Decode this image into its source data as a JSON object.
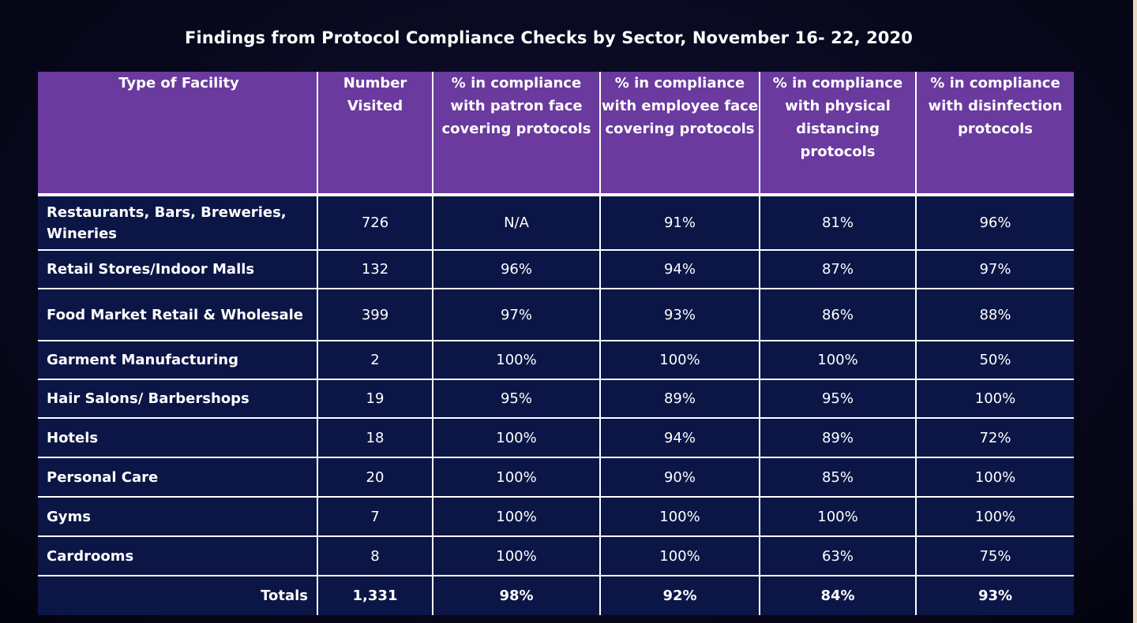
{
  "title": "Findings from Protocol Compliance Checks by Sector,  November 16- 22, 2020",
  "table": {
    "headers": [
      "Type of Facility",
      "Number Visited",
      "% in compliance with patron face covering protocols",
      "% in compliance with employee face covering protocols",
      "% in compliance with physical distancing protocols",
      "% in compliance with disinfection protocols"
    ],
    "rows": [
      {
        "facility": "Restaurants, Bars, Breweries, Wineries",
        "visited": "726",
        "patron": "N/A",
        "employee": "91%",
        "distancing": "81%",
        "disinfection": "96%"
      },
      {
        "facility": "Retail Stores/Indoor Malls",
        "visited": "132",
        "patron": "96%",
        "employee": "94%",
        "distancing": "87%",
        "disinfection": "97%"
      },
      {
        "facility": "Food Market Retail & Wholesale",
        "visited": "399",
        "patron": "97%",
        "employee": "93%",
        "distancing": "86%",
        "disinfection": "88%"
      },
      {
        "facility": "Garment Manufacturing",
        "visited": "2",
        "patron": "100%",
        "employee": "100%",
        "distancing": "100%",
        "disinfection": "50%"
      },
      {
        "facility": "Hair Salons/ Barbershops",
        "visited": "19",
        "patron": "95%",
        "employee": "89%",
        "distancing": "95%",
        "disinfection": "100%"
      },
      {
        "facility": "Hotels",
        "visited": "18",
        "patron": "100%",
        "employee": "94%",
        "distancing": "89%",
        "disinfection": "72%"
      },
      {
        "facility": "Personal Care",
        "visited": "20",
        "patron": "100%",
        "employee": "90%",
        "distancing": "85%",
        "disinfection": "100%"
      },
      {
        "facility": "Gyms",
        "visited": "7",
        "patron": "100%",
        "employee": "100%",
        "distancing": "100%",
        "disinfection": "100%"
      },
      {
        "facility": "Cardrooms",
        "visited": "8",
        "patron": "100%",
        "employee": "100%",
        "distancing": "63%",
        "disinfection": "75%"
      }
    ],
    "totals": {
      "label": "Totals",
      "visited": "1,331",
      "patron": "98%",
      "employee": "92%",
      "distancing": "84%",
      "disinfection": "93%"
    }
  },
  "colors": {
    "header_bg": "#6a3a9e",
    "row_bg": "#0b1646",
    "background": "#07071a",
    "text": "#ffffff"
  }
}
